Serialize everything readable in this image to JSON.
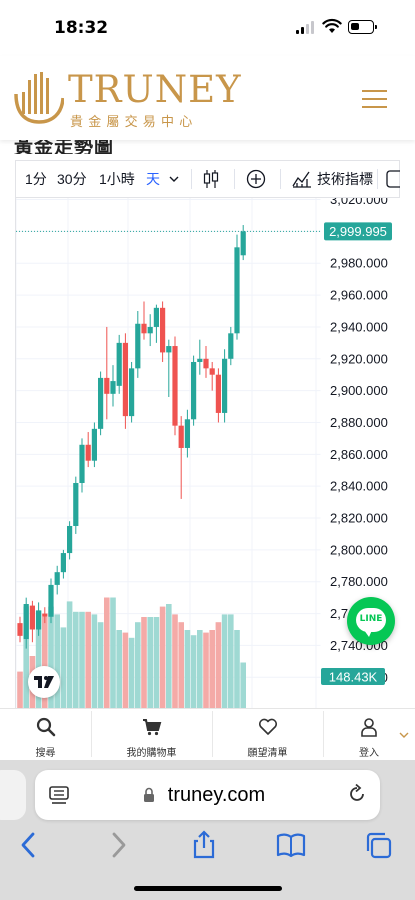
{
  "status_bar": {
    "time": "18:32"
  },
  "header": {
    "brand": "TRUNEY",
    "subtitle": "貴金屬交易中心",
    "brand_color": "#c8964a"
  },
  "page": {
    "title": "黃金走勢圖"
  },
  "toolbar": {
    "intervals": [
      "1分",
      "30分",
      "1小時",
      "天"
    ],
    "active_interval": "天",
    "indicators_label": "技術指標",
    "accent_color": "#2962ff"
  },
  "chart_data": {
    "type": "candlestick",
    "y_ticks": [
      "3,020.000",
      "3,000.000",
      "2,980.000",
      "2,960.000",
      "2,940.000",
      "2,920.000",
      "2,900.000",
      "2,880.000",
      "2,860.000",
      "2,840.000",
      "2,820.000",
      "2,800.000",
      "2,780.000",
      "2,760.000",
      "2,740.000",
      "2,720.000"
    ],
    "ylim": [
      2712,
      3026
    ],
    "last_price": "2,999.995",
    "last_price_value": 2999.995,
    "volume_label": "148.43K",
    "up_color": "#26a69a",
    "down_color": "#ef5350",
    "candles": [
      {
        "o": 2754,
        "h": 2758,
        "l": 2742,
        "c": 2746
      },
      {
        "o": 2744,
        "h": 2770,
        "l": 2738,
        "c": 2766
      },
      {
        "o": 2765,
        "h": 2768,
        "l": 2742,
        "c": 2750
      },
      {
        "o": 2750,
        "h": 2767,
        "l": 2746,
        "c": 2762
      },
      {
        "o": 2760,
        "h": 2764,
        "l": 2754,
        "c": 2758
      },
      {
        "o": 2758,
        "h": 2782,
        "l": 2754,
        "c": 2778
      },
      {
        "o": 2778,
        "h": 2790,
        "l": 2772,
        "c": 2786
      },
      {
        "o": 2786,
        "h": 2800,
        "l": 2782,
        "c": 2798
      },
      {
        "o": 2798,
        "h": 2818,
        "l": 2794,
        "c": 2815
      },
      {
        "o": 2815,
        "h": 2846,
        "l": 2810,
        "c": 2842
      },
      {
        "o": 2842,
        "h": 2870,
        "l": 2836,
        "c": 2866
      },
      {
        "o": 2866,
        "h": 2874,
        "l": 2852,
        "c": 2856
      },
      {
        "o": 2856,
        "h": 2880,
        "l": 2852,
        "c": 2876
      },
      {
        "o": 2876,
        "h": 2912,
        "l": 2872,
        "c": 2908
      },
      {
        "o": 2908,
        "h": 2940,
        "l": 2882,
        "c": 2898
      },
      {
        "o": 2898,
        "h": 2916,
        "l": 2890,
        "c": 2906
      },
      {
        "o": 2903,
        "h": 2935,
        "l": 2898,
        "c": 2930
      },
      {
        "o": 2930,
        "h": 2936,
        "l": 2876,
        "c": 2884
      },
      {
        "o": 2884,
        "h": 2918,
        "l": 2880,
        "c": 2914
      },
      {
        "o": 2914,
        "h": 2950,
        "l": 2908,
        "c": 2942
      },
      {
        "o": 2942,
        "h": 2956,
        "l": 2932,
        "c": 2936
      },
      {
        "o": 2936,
        "h": 2948,
        "l": 2928,
        "c": 2940
      },
      {
        "o": 2940,
        "h": 2954,
        "l": 2930,
        "c": 2952
      },
      {
        "o": 2952,
        "h": 2956,
        "l": 2918,
        "c": 2924
      },
      {
        "o": 2924,
        "h": 2932,
        "l": 2896,
        "c": 2928
      },
      {
        "o": 2928,
        "h": 2934,
        "l": 2872,
        "c": 2878
      },
      {
        "o": 2878,
        "h": 2884,
        "l": 2832,
        "c": 2864
      },
      {
        "o": 2864,
        "h": 2888,
        "l": 2858,
        "c": 2882
      },
      {
        "o": 2882,
        "h": 2922,
        "l": 2878,
        "c": 2918
      },
      {
        "o": 2918,
        "h": 2932,
        "l": 2910,
        "c": 2920
      },
      {
        "o": 2920,
        "h": 2928,
        "l": 2908,
        "c": 2914
      },
      {
        "o": 2914,
        "h": 2918,
        "l": 2900,
        "c": 2910
      },
      {
        "o": 2910,
        "h": 2914,
        "l": 2880,
        "c": 2886
      },
      {
        "o": 2886,
        "h": 2926,
        "l": 2880,
        "c": 2920
      },
      {
        "o": 2920,
        "h": 2940,
        "l": 2916,
        "c": 2936
      },
      {
        "o": 2936,
        "h": 2998,
        "l": 2932,
        "c": 2990
      },
      {
        "o": 2985,
        "h": 3004,
        "l": 2982,
        "c": 3000
      }
    ],
    "volumes": [
      0.28,
      0.78,
      0.4,
      0.75,
      0.7,
      0.78,
      0.72,
      0.62,
      0.82,
      0.74,
      0.74,
      0.74,
      0.72,
      0.66,
      0.85,
      0.85,
      0.6,
      0.58,
      0.54,
      0.66,
      0.7,
      0.7,
      0.7,
      0.78,
      0.8,
      0.72,
      0.66,
      0.6,
      0.56,
      0.6,
      0.58,
      0.6,
      0.66,
      0.72,
      0.72,
      0.6,
      0.35
    ]
  },
  "fab": {
    "label": "LINE",
    "color": "#06c755"
  },
  "bottom_nav": {
    "items": [
      {
        "label": "搜尋",
        "icon": "search-icon"
      },
      {
        "label": "我的購物車",
        "icon": "cart-icon"
      },
      {
        "label": "願望清單",
        "icon": "heart-icon"
      },
      {
        "label": "登入",
        "icon": "user-icon"
      }
    ]
  },
  "browser": {
    "url": "truney.com"
  }
}
